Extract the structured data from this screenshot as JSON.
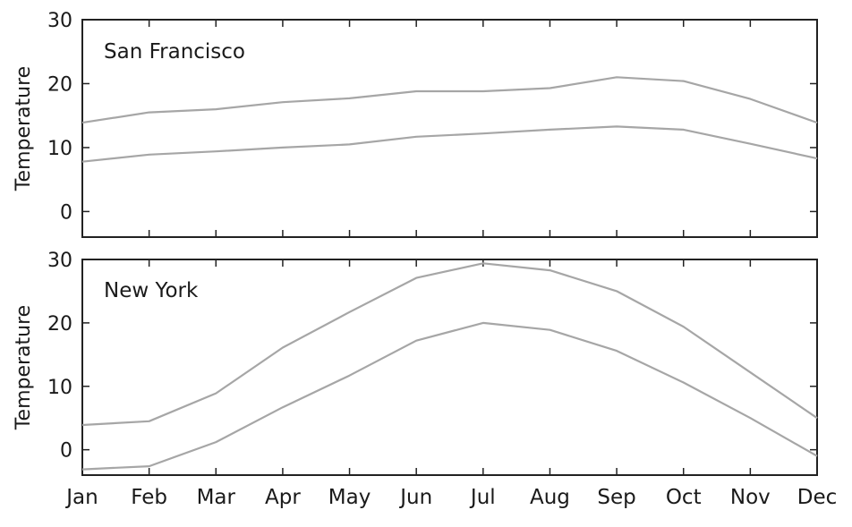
{
  "chart_data": [
    {
      "type": "line",
      "title": "San Francisco",
      "xlabel": "",
      "ylabel": "Temperature",
      "categories": [
        "Jan",
        "Feb",
        "Mar",
        "Apr",
        "May",
        "Jun",
        "Jul",
        "Aug",
        "Sep",
        "Oct",
        "Nov",
        "Dec"
      ],
      "ylim": [
        -4,
        30
      ],
      "yticks": [
        "0",
        "10",
        "20",
        "30"
      ],
      "grid": false,
      "show_xtick_labels": false,
      "line_color": "#a6a6a6",
      "series": [
        {
          "values": [
            13.9,
            15.5,
            16.0,
            17.1,
            17.7,
            18.8,
            18.8,
            19.3,
            21.0,
            20.4,
            17.6,
            13.9
          ]
        },
        {
          "values": [
            7.8,
            8.9,
            9.4,
            10.0,
            10.5,
            11.7,
            12.2,
            12.8,
            13.3,
            12.8,
            10.6,
            8.3
          ]
        }
      ]
    },
    {
      "type": "line",
      "title": "New York",
      "xlabel": "",
      "ylabel": "Temperature",
      "categories": [
        "Jan",
        "Feb",
        "Mar",
        "Apr",
        "May",
        "Jun",
        "Jul",
        "Aug",
        "Sep",
        "Oct",
        "Nov",
        "Dec"
      ],
      "ylim": [
        -4,
        30
      ],
      "yticks": [
        "0",
        "10",
        "20",
        "30"
      ],
      "grid": false,
      "show_xtick_labels": true,
      "line_color": "#a6a6a6",
      "series": [
        {
          "values": [
            3.9,
            4.5,
            8.9,
            16.1,
            21.7,
            27.1,
            29.4,
            28.3,
            25.0,
            19.4,
            12.2,
            5.0
          ]
        },
        {
          "values": [
            -3.1,
            -2.6,
            1.2,
            6.7,
            11.7,
            17.2,
            20.0,
            18.9,
            15.6,
            10.6,
            5.0,
            -1.0
          ]
        }
      ]
    }
  ]
}
